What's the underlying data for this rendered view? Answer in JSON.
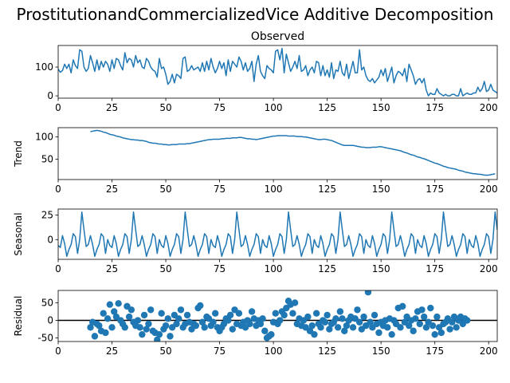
{
  "figure_title": "ProstitutionandCommercializedVice Additive Decomposition",
  "chart_data": [
    {
      "type": "line",
      "title": "Observed",
      "ylabel": "",
      "xlim": [
        0,
        204
      ],
      "ylim": [
        -8,
        175
      ],
      "xticks": [
        0,
        25,
        50,
        75,
        100,
        125,
        150,
        175,
        200
      ],
      "yticks": [
        0,
        100
      ],
      "color": "#1f77b4",
      "x_start": 0,
      "values": [
        93,
        82,
        88,
        110,
        95,
        110,
        80,
        125,
        105,
        95,
        160,
        155,
        100,
        85,
        95,
        140,
        115,
        85,
        125,
        90,
        120,
        100,
        120,
        110,
        85,
        125,
        95,
        130,
        125,
        105,
        90,
        150,
        115,
        130,
        125,
        100,
        140,
        115,
        125,
        100,
        95,
        130,
        120,
        100,
        90,
        85,
        65,
        130,
        95,
        100,
        75,
        40,
        50,
        75,
        45,
        75,
        70,
        60,
        130,
        135,
        85,
        90,
        105,
        90,
        95,
        100,
        85,
        115,
        85,
        120,
        90,
        130,
        100,
        80,
        95,
        120,
        95,
        115,
        70,
        125,
        85,
        120,
        110,
        100,
        135,
        120,
        90,
        115,
        85,
        95,
        120,
        50,
        110,
        140,
        85,
        70,
        60,
        105,
        95,
        90,
        80,
        155,
        160,
        125,
        165,
        80,
        145,
        115,
        85,
        100,
        120,
        95,
        140,
        85,
        90,
        105,
        70,
        90,
        100,
        80,
        120,
        115,
        70,
        105,
        70,
        90,
        65,
        115,
        60,
        90,
        85,
        120,
        80,
        70,
        110,
        60,
        90,
        120,
        80,
        80,
        160,
        90,
        100,
        70,
        55,
        50,
        60,
        45,
        55,
        65,
        90,
        70,
        95,
        50,
        75,
        100,
        45,
        70,
        85,
        80,
        70,
        95,
        50,
        110,
        90,
        70,
        40,
        55,
        60,
        45,
        60,
        20,
        0,
        10,
        5,
        5,
        25,
        10,
        5,
        0,
        5,
        0,
        0,
        5,
        5,
        0,
        0,
        25,
        0,
        5,
        10,
        5,
        5,
        10,
        10,
        30,
        15,
        25,
        50,
        15,
        20,
        40,
        20,
        15,
        10,
        0
      ]
    },
    {
      "type": "line",
      "title": "",
      "ylabel": "Trend",
      "xlim": [
        0,
        204
      ],
      "ylim": [
        4,
        121
      ],
      "xticks": [
        0,
        25,
        50,
        75,
        100,
        125,
        150,
        175,
        200
      ],
      "yticks": [
        50,
        100
      ],
      "color": "#1f77b4",
      "x_start": 15,
      "values": [
        112,
        113,
        114,
        115,
        114,
        113,
        111,
        110,
        108,
        106,
        105,
        104,
        102,
        101,
        100,
        98,
        97,
        96,
        95,
        94,
        94,
        93,
        93,
        92,
        92,
        91,
        90,
        88,
        87,
        86,
        86,
        85,
        84,
        84,
        83,
        83,
        82,
        82,
        83,
        83,
        83,
        84,
        84,
        84,
        84,
        85,
        85,
        86,
        87,
        88,
        89,
        90,
        91,
        92,
        93,
        94,
        94,
        95,
        95,
        95,
        95,
        96,
        96,
        97,
        97,
        97,
        98,
        98,
        98,
        99,
        99,
        98,
        97,
        96,
        96,
        95,
        95,
        94,
        95,
        96,
        97,
        98,
        99,
        100,
        101,
        102,
        102,
        103,
        103,
        103,
        103,
        103,
        102,
        102,
        102,
        102,
        101,
        101,
        101,
        100,
        100,
        99,
        98,
        97,
        96,
        95,
        94,
        94,
        95,
        95,
        94,
        93,
        92,
        90,
        88,
        86,
        84,
        82,
        81,
        81,
        81,
        81,
        81,
        80,
        79,
        78,
        77,
        77,
        76,
        76,
        76,
        77,
        77,
        77,
        78,
        78,
        77,
        76,
        75,
        74,
        73,
        72,
        71,
        70,
        69,
        67,
        65,
        64,
        62,
        60,
        59,
        57,
        55,
        54,
        52,
        51,
        49,
        47,
        45,
        43,
        41,
        40,
        38,
        36,
        34,
        33,
        31,
        30,
        29,
        28,
        27,
        25,
        24,
        23,
        21,
        20,
        19,
        18,
        17,
        17,
        16,
        16,
        15,
        14,
        14,
        14,
        15,
        16,
        17
      ]
    },
    {
      "type": "line",
      "title": "",
      "ylabel": "Seasonal",
      "xlim": [
        0,
        204
      ],
      "ylim": [
        -20,
        31
      ],
      "xticks": [
        0,
        25,
        50,
        75,
        100,
        125,
        150,
        175,
        200
      ],
      "yticks": [
        0,
        25
      ],
      "color": "#1f77b4",
      "x_start": 0,
      "period": 12,
      "pattern": [
        -6,
        -8,
        4,
        -4,
        -17,
        -10,
        -5,
        6,
        3,
        -14,
        0,
        28,
        10,
        -7,
        -5,
        4,
        -5,
        -17,
        -10,
        -5,
        6,
        3,
        -14,
        0
      ]
    },
    {
      "type": "scatter",
      "title": "",
      "ylabel": "Residual",
      "xlim": [
        0,
        204
      ],
      "ylim": [
        -60,
        85
      ],
      "xticks": [
        0,
        25,
        50,
        75,
        100,
        125,
        150,
        175,
        200
      ],
      "yticks": [
        -50,
        0,
        50
      ],
      "color": "#1f77b4",
      "baseline": 0,
      "x_start": 15,
      "values": [
        -20,
        -5,
        -45,
        -10,
        -15,
        -30,
        20,
        -35,
        5,
        45,
        -20,
        25,
        10,
        48,
        0,
        -10,
        -20,
        40,
        10,
        30,
        -5,
        -15,
        0,
        -20,
        -40,
        15,
        -25,
        -10,
        30,
        -30,
        -35,
        -55,
        -40,
        20,
        -25,
        -15,
        5,
        -45,
        -20,
        15,
        -10,
        5,
        30,
        -20,
        -10,
        15,
        -5,
        -25,
        -10,
        -15,
        35,
        42,
        -5,
        -20,
        10,
        5,
        -15,
        -5,
        20,
        -20,
        -30,
        -20,
        -10,
        5,
        0,
        15,
        -25,
        30,
        -10,
        20,
        -15,
        -5,
        -20,
        0,
        -10,
        25,
        5,
        -15,
        0,
        -10,
        5,
        -30,
        -50,
        -45,
        -40,
        -5,
        20,
        -10,
        0,
        25,
        15,
        35,
        55,
        45,
        20,
        50,
        -10,
        5,
        -15,
        0,
        -20,
        10,
        -30,
        -15,
        -40,
        20,
        -10,
        -20,
        0,
        -5,
        15,
        -25,
        -10,
        -5,
        5,
        -20,
        25,
        5,
        -30,
        -15,
        0,
        10,
        -20,
        5,
        30,
        -5,
        -25,
        10,
        -15,
        80,
        -5,
        -20,
        15,
        -10,
        -35,
        -5,
        -15,
        0,
        -20,
        5,
        -40,
        0,
        -10,
        35,
        -20,
        40,
        -5,
        10,
        -15,
        0,
        -30,
        5,
        25,
        -10,
        30,
        10,
        -20,
        -5,
        35,
        -15,
        -40,
        10,
        -20,
        -35,
        -10,
        -5,
        5,
        -25,
        -5,
        10,
        -20,
        0,
        10,
        -10,
        5,
        0
      ]
    }
  ]
}
